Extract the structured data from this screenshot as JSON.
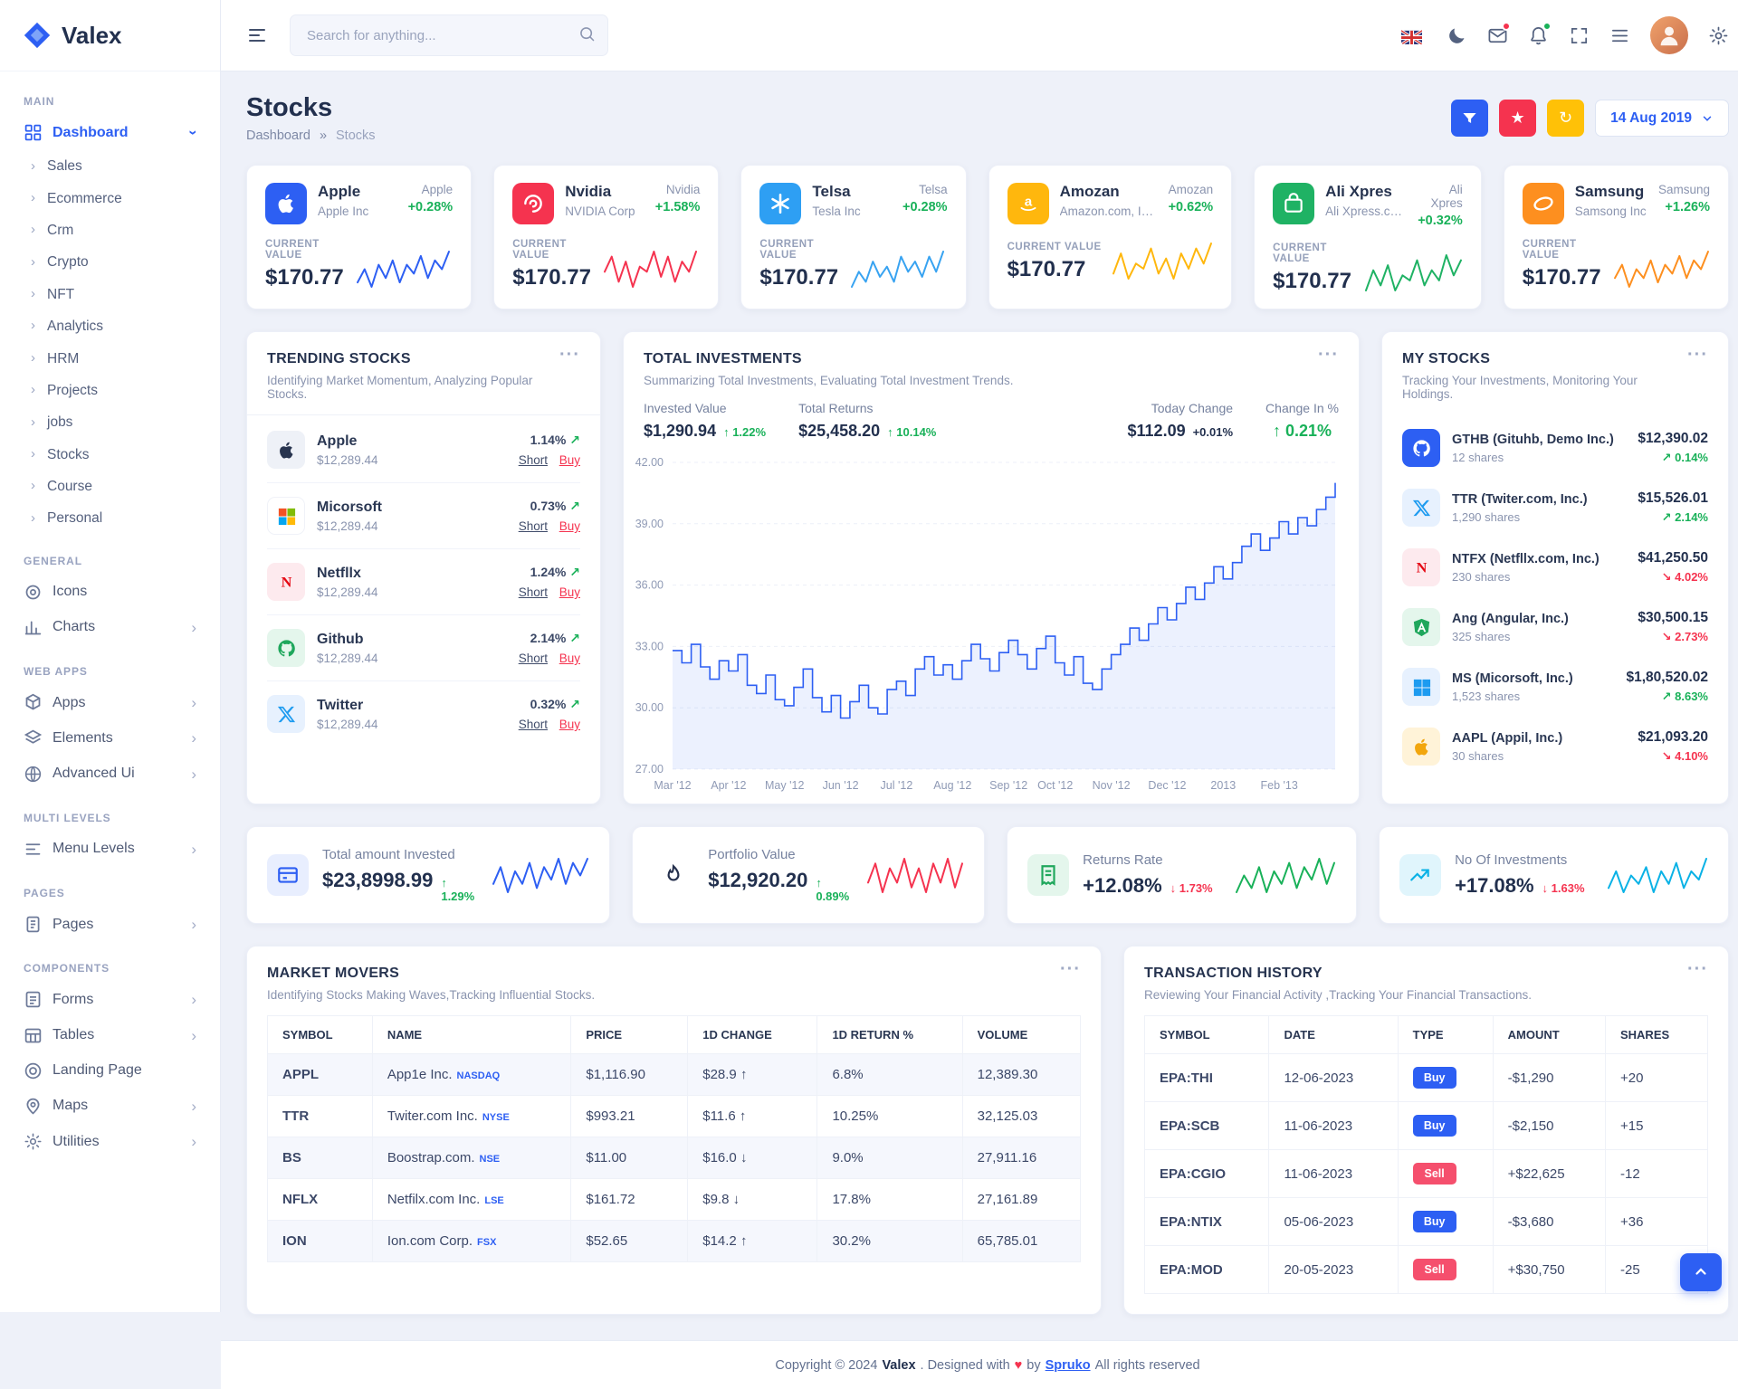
{
  "labels": {
    "current_value": "CURRENT VALUE",
    "short": "Short",
    "buy": "Buy",
    "trend_arrow": "↗",
    "more": "···"
  },
  "header": {
    "logo_text": "Valex",
    "search_placeholder": "Search for anything..."
  },
  "toolbar": {
    "date_label": "14 Aug 2019"
  },
  "page": {
    "title": "Stocks",
    "breadcrumb_home": "Dashboard",
    "breadcrumb_sep": "»",
    "breadcrumb_current": "Stocks"
  },
  "sidebar": {
    "items": [
      {
        "kind": "head",
        "label": "MAIN"
      },
      {
        "kind": "link",
        "label": "Dashboard",
        "icon": "grid",
        "open": true,
        "active": true
      },
      {
        "kind": "sub",
        "label": "Sales"
      },
      {
        "kind": "sub",
        "label": "Ecommerce"
      },
      {
        "kind": "sub",
        "label": "Crm"
      },
      {
        "kind": "sub",
        "label": "Crypto"
      },
      {
        "kind": "sub",
        "label": "NFT"
      },
      {
        "kind": "sub",
        "label": "Analytics"
      },
      {
        "kind": "sub",
        "label": "HRM"
      },
      {
        "kind": "sub",
        "label": "Projects"
      },
      {
        "kind": "sub",
        "label": "jobs"
      },
      {
        "kind": "sub",
        "label": "Stocks"
      },
      {
        "kind": "sub",
        "label": "Course"
      },
      {
        "kind": "sub",
        "label": "Personal"
      },
      {
        "kind": "head",
        "label": "GENERAL"
      },
      {
        "kind": "link",
        "label": "Icons",
        "icon": "target"
      },
      {
        "kind": "link",
        "label": "Charts",
        "icon": "chart",
        "chev": true
      },
      {
        "kind": "head",
        "label": "WEB APPS"
      },
      {
        "kind": "link",
        "label": "Apps",
        "icon": "apps",
        "chev": true
      },
      {
        "kind": "link",
        "label": "Elements",
        "icon": "elements",
        "chev": true
      },
      {
        "kind": "link",
        "label": "Advanced Ui",
        "icon": "globe",
        "chev": true
      },
      {
        "kind": "head",
        "label": "MULTI LEVELS"
      },
      {
        "kind": "link",
        "label": "Menu Levels",
        "icon": "menulv",
        "chev": true
      },
      {
        "kind": "head",
        "label": "PAGES"
      },
      {
        "kind": "link",
        "label": "Pages",
        "icon": "pages",
        "chev": true
      },
      {
        "kind": "head",
        "label": "COMPONENTS"
      },
      {
        "kind": "link",
        "label": "Forms",
        "icon": "forms",
        "chev": true
      },
      {
        "kind": "link",
        "label": "Tables",
        "icon": "tables",
        "chev": true
      },
      {
        "kind": "link",
        "label": "Landing Page",
        "icon": "landing"
      },
      {
        "kind": "link",
        "label": "Maps",
        "icon": "maps",
        "chev": true
      },
      {
        "kind": "link",
        "label": "Utilities",
        "icon": "utilities",
        "chev": true
      }
    ]
  },
  "stock_cards": [
    {
      "name": "Apple",
      "company": "Apple Inc",
      "symbol": "Apple",
      "change": "+0.28%",
      "value": "$170.77",
      "icon": "apple",
      "tile": "blue",
      "spark_color": "#2d5ff3",
      "spark": [
        4,
        7,
        3,
        8,
        5,
        9,
        4,
        8,
        6,
        10,
        5,
        9,
        7,
        11
      ]
    },
    {
      "name": "Nvidia",
      "company": "NVIDIA Corp",
      "symbol": "Nvidia",
      "change": "+1.58%",
      "value": "$170.77",
      "icon": "nvidia",
      "tile": "red",
      "spark_color": "#f5334f",
      "spark": [
        6,
        9,
        4,
        8,
        3,
        7,
        6,
        10,
        5,
        9,
        4,
        8,
        6,
        10
      ]
    },
    {
      "name": "Telsa",
      "company": "Tesla Inc",
      "symbol": "Telsa",
      "change": "+0.28%",
      "value": "$170.77",
      "icon": "asterisk",
      "tile": "skyblue",
      "spark_color": "#38a3f1",
      "spark": [
        3,
        6,
        4,
        8,
        5,
        7,
        4,
        9,
        6,
        8,
        5,
        9,
        6,
        10
      ]
    },
    {
      "name": "Amozan",
      "company": "Amazon.com, Inc.",
      "symbol": "Amozan",
      "change": "+0.62%",
      "value": "$170.77",
      "icon": "amazon",
      "tile": "yellow",
      "spark_color": "#ffb70d",
      "spark": [
        5,
        9,
        4,
        7,
        6,
        10,
        5,
        8,
        4,
        9,
        6,
        10,
        7,
        11
      ]
    },
    {
      "name": "Ali Xpres",
      "company": "Ali Xpress.com",
      "symbol": "Ali Xpres",
      "change": "+0.32%",
      "value": "$170.77",
      "icon": "bag",
      "tile": "green",
      "spark_color": "#1fb264",
      "spark": [
        4,
        8,
        5,
        9,
        4,
        7,
        6,
        10,
        5,
        8,
        6,
        11,
        7,
        10
      ]
    },
    {
      "name": "Samsung",
      "company": "Samsong Inc",
      "symbol": "Samsung",
      "change": "+1.26%",
      "value": "$170.77",
      "icon": "samsung",
      "tile": "orange",
      "spark_color": "#fd8f1f",
      "spark": [
        6,
        9,
        4,
        8,
        6,
        10,
        5,
        9,
        7,
        11,
        6,
        10,
        8,
        12
      ]
    }
  ],
  "trending": {
    "title": "TRENDING STOCKS",
    "subtitle": "Identifying Market Momentum, Analyzing Popular Stocks.",
    "items": [
      {
        "name": "Apple",
        "price": "$12,289.44",
        "change": "1.14%",
        "icon": "apple",
        "tile": "softdark"
      },
      {
        "name": "Micorsoft",
        "price": "$12,289.44",
        "change": "0.73%",
        "icon": "windows4",
        "tile": "plain"
      },
      {
        "name": "Netfllx",
        "price": "$12,289.44",
        "change": "1.24%",
        "icon": "netflix",
        "tile": "softred"
      },
      {
        "name": "Github",
        "price": "$12,289.44",
        "change": "2.14%",
        "icon": "github",
        "tile": "softgreen"
      },
      {
        "name": "Twitter",
        "price": "$12,289.44",
        "change": "0.32%",
        "icon": "xtwitter",
        "tile": "softblue"
      }
    ]
  },
  "investments": {
    "title": "TOTAL INVESTMENTS",
    "subtitle": "Summarizing Total Investments, Evaluating Total Investment Trends.",
    "stats": [
      {
        "label": "Invested Value",
        "value": "$1,290.94",
        "vcol": "dark",
        "change": "↑ 1.22%",
        "ccol": "green"
      },
      {
        "label": "Total Returns",
        "value": "$25,458.20",
        "vcol": "dark",
        "change": "↑ 10.14%",
        "ccol": "green"
      },
      {
        "label": "Today Change",
        "value": "$112.09",
        "vcol": "dark",
        "change": "+0.01%",
        "ccol": "dark"
      },
      {
        "label": "Change In %",
        "value": "↑ 0.21%",
        "vcol": "green",
        "change": "",
        "ccol": "green"
      }
    ]
  },
  "chart_data": {
    "type": "area",
    "title": "TOTAL INVESTMENTS",
    "line_color": "#2d5ff3",
    "ylim": [
      27,
      42
    ],
    "yticks": [
      42,
      39,
      36,
      33,
      30,
      27
    ],
    "x_labels": [
      "Mar '12",
      "Apr '12",
      "May '12",
      "Jun '12",
      "Jul '12",
      "Aug '12",
      "Sep '12",
      "Oct '12",
      "Nov '12",
      "Dec '12",
      "2013",
      "Feb '13"
    ],
    "values": [
      32.8,
      32.2,
      33.1,
      32.0,
      31.4,
      32.3,
      31.8,
      32.6,
      31.1,
      30.7,
      31.6,
      30.4,
      30.1,
      31.0,
      31.9,
      30.5,
      29.8,
      30.6,
      29.5,
      30.3,
      31.1,
      30.0,
      29.7,
      30.9,
      31.3,
      30.6,
      31.9,
      32.5,
      31.6,
      32.1,
      31.4,
      32.3,
      33.1,
      32.4,
      31.8,
      32.7,
      33.3,
      32.6,
      31.9,
      32.9,
      33.5,
      32.2,
      31.6,
      32.5,
      31.2,
      30.9,
      31.9,
      32.6,
      33.1,
      33.9,
      33.3,
      34.1,
      34.9,
      34.3,
      35.1,
      35.9,
      35.3,
      36.1,
      36.9,
      36.3,
      37.1,
      37.9,
      38.5,
      37.7,
      38.3,
      39.1,
      38.5,
      39.3,
      38.9,
      39.7,
      40.3,
      41.0
    ]
  },
  "my_stocks": {
    "title": "MY STOCKS",
    "subtitle": "Tracking Your Investments, Monitoring Your Holdings.",
    "items": [
      {
        "name": "GTHB (Gituhb, Demo Inc.)",
        "shares": "12 shares",
        "value": "$12,390.02",
        "change": "↗ 0.14%",
        "dir": "up",
        "icon": "github",
        "tile": "blue"
      },
      {
        "name": "TTR (Twiter.com, Inc.)",
        "shares": "1,290 shares",
        "value": "$15,526.01",
        "change": "↗ 2.14%",
        "dir": "up",
        "icon": "xtwitter",
        "tile": "softblue"
      },
      {
        "name": "NTFX (Netfllx.com, Inc.)",
        "shares": "230 shares",
        "value": "$41,250.50",
        "change": "↘ 4.02%",
        "dir": "down",
        "icon": "netflix",
        "tile": "softred"
      },
      {
        "name": "Ang (Angular, Inc.)",
        "shares": "325 shares",
        "value": "$30,500.15",
        "change": "↘ 2.73%",
        "dir": "down",
        "icon": "angular",
        "tile": "softgreen"
      },
      {
        "name": "MS (Micorsoft, Inc.)",
        "shares": "1,523 shares",
        "value": "$1,80,520.02",
        "change": "↗ 8.63%",
        "dir": "up",
        "icon": "windows",
        "tile": "softblue"
      },
      {
        "name": "AAPL (Appil, Inc.)",
        "shares": "30 shares",
        "value": "$21,093.20",
        "change": "↘ 4.10%",
        "dir": "down",
        "icon": "apple",
        "tile": "softyellow"
      }
    ]
  },
  "stats": [
    {
      "label": "Total amount Invested",
      "value": "$23,8998.99",
      "change": "↑ 1.29%",
      "dir": "up",
      "icon": "invested",
      "tile": "softblue2",
      "spark_color": "#2d5ff3",
      "spark": [
        5,
        9,
        3,
        8,
        5,
        10,
        4,
        9,
        6,
        11,
        5,
        10,
        7,
        11
      ]
    },
    {
      "label": "Portfolio Value",
      "value": "$12,920.20",
      "change": "↑ 0.89%",
      "dir": "up",
      "icon": "portfolio",
      "tile": "softpink",
      "spark_color": "#f5334f",
      "spark": [
        6,
        10,
        4,
        9,
        6,
        11,
        5,
        9,
        4,
        10,
        6,
        11,
        5,
        10
      ]
    },
    {
      "label": "Returns Rate",
      "value": "+12.08%",
      "change": "↓ 1.73%",
      "dir": "down",
      "icon": "returns",
      "tile": "softgreen",
      "spark_color": "#19b159",
      "spark": [
        4,
        8,
        5,
        10,
        4,
        9,
        6,
        11,
        5,
        10,
        7,
        12,
        6,
        11
      ]
    },
    {
      "label": "No Of Investments",
      "value": "+17.08%",
      "change": "↓ 1.63%",
      "dir": "down",
      "icon": "count",
      "tile": "softcyan",
      "spark_color": "#0ab2e6",
      "spark": [
        5,
        9,
        4,
        8,
        6,
        10,
        4,
        9,
        6,
        11,
        5,
        9,
        7,
        12
      ]
    }
  ],
  "market_movers": {
    "title": "MARKET MOVERS",
    "subtitle": "Identifying Stocks Making Waves,Tracking Influential Stocks.",
    "headers": [
      "SYMBOL",
      "NAME",
      "PRICE",
      "1D CHANGE",
      "1D RETURN %",
      "VOLUME"
    ],
    "rows": [
      {
        "symbol": "APPL",
        "name": "App1e Inc.",
        "exchange": "NASDAQ",
        "price": "$1,116.90",
        "change": "$28.9 ↑",
        "cdir": "up",
        "ret": "6.8%",
        "rdir": "up",
        "volume": "12,389.30"
      },
      {
        "symbol": "TTR",
        "name": "Twiter.com Inc.",
        "exchange": "NYSE",
        "price": "$993.21",
        "change": "$11.6 ↑",
        "cdir": "up",
        "ret": "10.25%",
        "rdir": "up",
        "volume": "32,125.03"
      },
      {
        "symbol": "BS",
        "name": "Boostrap.com.",
        "exchange": "NSE",
        "price": "$11.00",
        "change": "$16.0 ↓",
        "cdir": "down",
        "ret": "9.0%",
        "rdir": "down",
        "volume": "27,911.16"
      },
      {
        "symbol": "NFLX",
        "name": "Netfilx.com Inc.",
        "exchange": "LSE",
        "price": "$161.72",
        "change": "$9.8 ↓",
        "cdir": "down",
        "ret": "17.8%",
        "rdir": "up",
        "volume": "27,161.89"
      },
      {
        "symbol": "ION",
        "name": "Ion.com Corp.",
        "exchange": "FSX",
        "price": "$52.65",
        "change": "$14.2 ↑",
        "cdir": "up",
        "ret": "30.2%",
        "rdir": "up",
        "volume": "65,785.01"
      }
    ]
  },
  "transactions": {
    "title": "TRANSACTION HISTORY",
    "subtitle": "Reviewing Your Financial Activity ,Tracking Your Financial Transactions.",
    "headers": [
      "SYMBOL",
      "DATE",
      "TYPE",
      "AMOUNT",
      "SHARES"
    ],
    "rows": [
      {
        "symbol": "EPA:THI",
        "date": "12-06-2023",
        "type": "Buy",
        "tcol": "blue",
        "amount": "-$1,290",
        "acol": "down",
        "shares": "+20",
        "scol": "up"
      },
      {
        "symbol": "EPA:SCB",
        "date": "11-06-2023",
        "type": "Buy",
        "tcol": "blue",
        "amount": "-$2,150",
        "acol": "down",
        "shares": "+15",
        "scol": "up"
      },
      {
        "symbol": "EPA:CGIO",
        "date": "11-06-2023",
        "type": "Sell",
        "tcol": "red",
        "amount": "+$22,625",
        "acol": "down",
        "shares": "-12",
        "scol": "down"
      },
      {
        "symbol": "EPA:NTIX",
        "date": "05-06-2023",
        "type": "Buy",
        "tcol": "blue",
        "amount": "-$3,680",
        "acol": "down",
        "shares": "+36",
        "scol": "up"
      },
      {
        "symbol": "EPA:MOD",
        "date": "20-05-2023",
        "type": "Sell",
        "tcol": "red",
        "amount": "+$30,750",
        "acol": "down",
        "shares": "-25",
        "scol": "down"
      }
    ]
  },
  "footer": {
    "text_prefix": "Copyright © 2024",
    "brand": "Valex",
    "text_mid": ". Designed with",
    "heart": "♥",
    "by": "by",
    "designer": "Spruko",
    "text_suffix": "All rights reserved"
  },
  "colors": {
    "primary": "#2d5ff3",
    "success": "#19b159",
    "danger": "#f5334f",
    "warning": "#ffc107",
    "orange": "#fd8f1f",
    "info": "#0ab2e6",
    "background": "#eef1f9"
  }
}
